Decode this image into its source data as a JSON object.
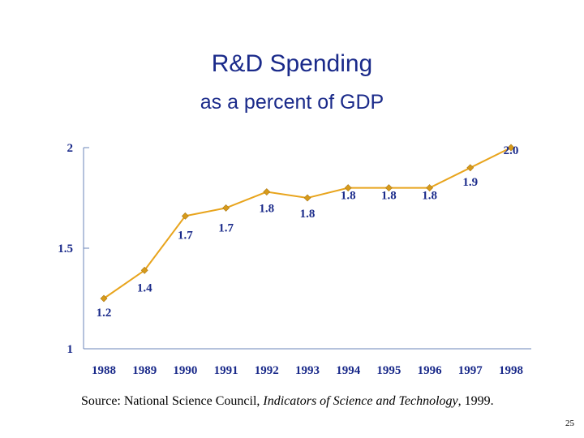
{
  "title": "R&D Spending",
  "subtitle": "as a percent of GDP",
  "chart_data": {
    "type": "line",
    "categories": [
      "1988",
      "1989",
      "1990",
      "1991",
      "1992",
      "1993",
      "1994",
      "1995",
      "1996",
      "1997",
      "1998"
    ],
    "values": [
      1.25,
      1.39,
      1.66,
      1.7,
      1.78,
      1.75,
      1.8,
      1.8,
      1.8,
      1.9,
      2.0
    ],
    "data_labels": [
      "1.2",
      "1.4",
      "1.7",
      "1.7",
      "1.8",
      "1.8",
      "1.8",
      "1.8",
      "1.8",
      "1.9",
      "2.0"
    ],
    "ylim": [
      1,
      2
    ],
    "yticks": [
      "1",
      "1.5",
      "2"
    ],
    "line_color": "#e8a41c",
    "marker_color": "#d79a1a",
    "grid": false,
    "legend": "none"
  },
  "source": {
    "prefix": "Source: National Science Council, ",
    "italic": "Indicators of Science and Technology",
    "suffix": ", 1999."
  },
  "page_number": "25"
}
